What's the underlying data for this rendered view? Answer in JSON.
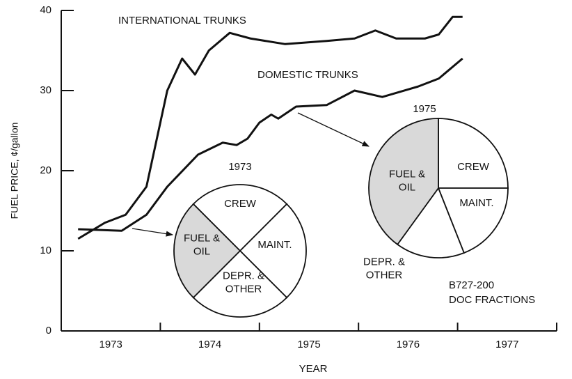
{
  "chart_data": [
    {
      "type": "line",
      "xlabel": "YEAR",
      "ylabel": "FUEL PRICE, ¢/gallon",
      "xlim": [
        1973,
        1978
      ],
      "xticks": [
        1973,
        1974,
        1975,
        1976,
        1977
      ],
      "ylim": [
        0,
        40
      ],
      "yticks": [
        0,
        10,
        20,
        30,
        40
      ],
      "series": [
        {
          "name": "INTERNATIONAL TRUNKS",
          "color": "#111111",
          "x": [
            1973.17,
            1973.44,
            1973.65,
            1973.86,
            1974.07,
            1974.22,
            1974.35,
            1974.49,
            1974.7,
            1974.91,
            1975.26,
            1975.68,
            1975.96,
            1976.17,
            1976.38,
            1976.67,
            1976.81,
            1976.95,
            1977.05
          ],
          "values": [
            11.5,
            13.5,
            14.5,
            18,
            30,
            34,
            32,
            35,
            37.2,
            36.5,
            35.8,
            36.2,
            36.5,
            37.5,
            36.5,
            36.5,
            37,
            39.2,
            39.2
          ]
        },
        {
          "name": "DOMESTIC TRUNKS",
          "color": "#111111",
          "x": [
            1973.17,
            1973.61,
            1973.86,
            1974.07,
            1974.38,
            1974.63,
            1974.77,
            1974.88,
            1975.0,
            1975.12,
            1975.19,
            1975.37,
            1975.68,
            1975.96,
            1976.24,
            1976.6,
            1976.81,
            1977.05
          ],
          "values": [
            12.7,
            12.5,
            14.5,
            18,
            22,
            23.5,
            23.2,
            24,
            26,
            27,
            26.5,
            28,
            28.2,
            30,
            29.2,
            30.5,
            31.5,
            34
          ]
        }
      ]
    },
    {
      "type": "pie",
      "title": "1973",
      "categories": [
        [
          "CREW"
        ],
        [
          "MAINT."
        ],
        [
          "DEPR. &",
          "OTHER"
        ],
        [
          "FUEL &",
          "OIL"
        ]
      ],
      "values": [
        25,
        25,
        25,
        25
      ],
      "colors": [
        "#ffffff",
        "#ffffff",
        "#ffffff",
        "#d9d9d9"
      ]
    },
    {
      "type": "pie",
      "title": "1975",
      "categories": [
        [
          "CREW"
        ],
        [
          "MAINT."
        ],
        [
          "DEPR. &",
          "OTHER"
        ],
        [
          "FUEL &",
          "OIL"
        ]
      ],
      "values": [
        25,
        19,
        16,
        40
      ],
      "colors": [
        "#ffffff",
        "#ffffff",
        "#ffffff",
        "#d9d9d9"
      ],
      "note": [
        "B727-200",
        "DOC FRACTIONS"
      ]
    }
  ]
}
